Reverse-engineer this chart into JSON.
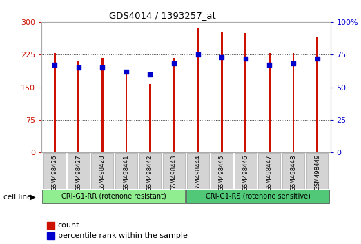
{
  "title": "GDS4014 / 1393257_at",
  "samples": [
    "GSM498426",
    "GSM498427",
    "GSM498428",
    "GSM498441",
    "GSM498442",
    "GSM498443",
    "GSM498444",
    "GSM498445",
    "GSM498446",
    "GSM498447",
    "GSM498448",
    "GSM498449"
  ],
  "count_values": [
    228,
    210,
    218,
    180,
    158,
    218,
    287,
    278,
    275,
    228,
    228,
    265
  ],
  "percentile_values": [
    67,
    65,
    65,
    62,
    60,
    68,
    75,
    73,
    72,
    67,
    68,
    72
  ],
  "groups": [
    {
      "label": "CRI-G1-RR (rotenone resistant)",
      "color": "#90EE90",
      "n": 6
    },
    {
      "label": "CRI-G1-RS (rotenone sensitive)",
      "color": "#50C878",
      "n": 6
    }
  ],
  "bar_color": "#CC1100",
  "dot_color": "#0000CC",
  "ylim_left": [
    0,
    300
  ],
  "ylim_right": [
    0,
    100
  ],
  "yticks_left": [
    0,
    75,
    150,
    225,
    300
  ],
  "yticks_right": [
    0,
    25,
    50,
    75,
    100
  ],
  "left_tick_color": "#CC1100",
  "right_tick_color": "#0000CC",
  "bar_width": 0.08,
  "background_color": "#ffffff",
  "cell_line_label": "cell line",
  "legend_count": "count",
  "legend_pct": "percentile rank within the sample"
}
